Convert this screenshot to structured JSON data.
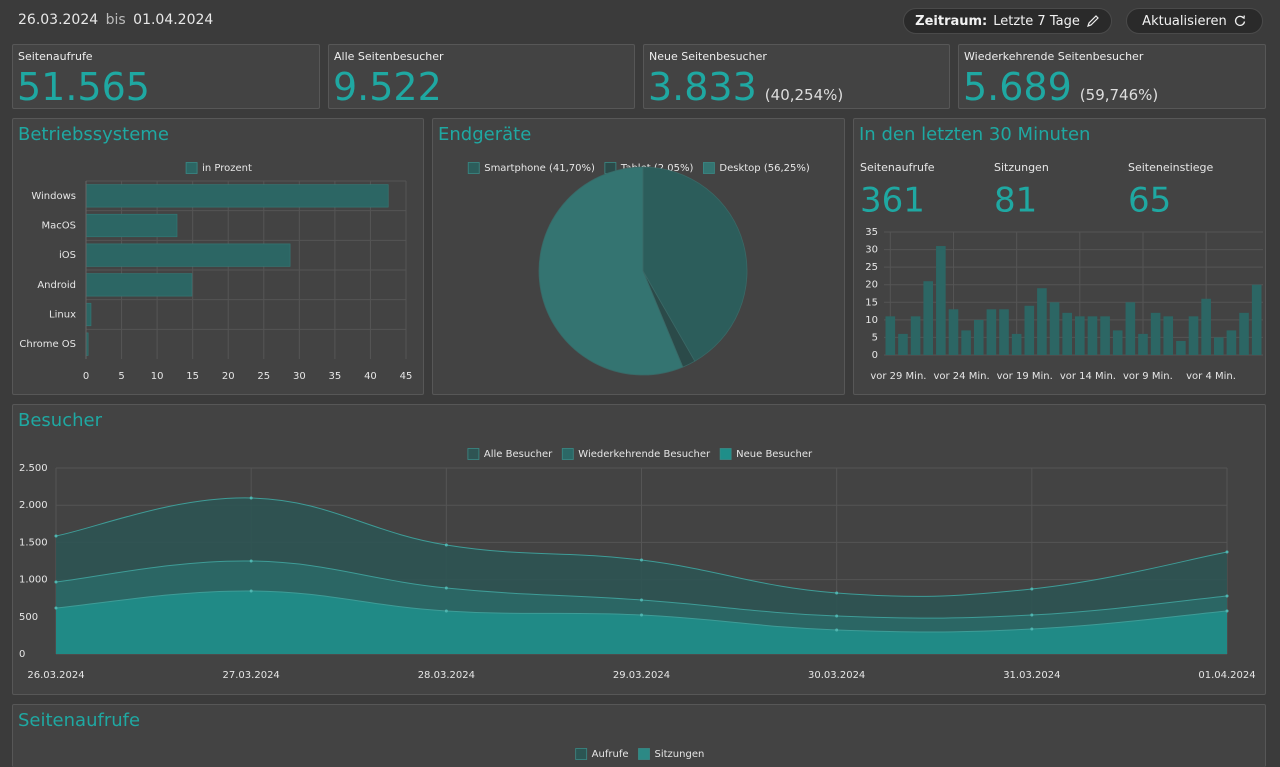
{
  "header": {
    "date_from": "26.03.2024",
    "separator": "bis",
    "date_to": "01.04.2024",
    "period_label": "Zeitraum:",
    "period_value": "Letzte 7 Tage",
    "refresh": "Aktualisieren"
  },
  "kpis": [
    {
      "label": "Seitenaufrufe",
      "value": "51.565"
    },
    {
      "label": "Alle Seitenbesucher",
      "value": "9.522"
    },
    {
      "label": "Neue Seitenbesucher",
      "value": "3.833",
      "share": "(40,254%)"
    },
    {
      "label": "Wiederkehrende Seitenbesucher",
      "value": "5.689",
      "share": "(59,746%)"
    }
  ],
  "chart_data": [
    {
      "type": "hbar",
      "title": "Betriebssysteme",
      "categories": [
        "Windows",
        "MacOS",
        "iOS",
        "Android",
        "Linux",
        "Chrome OS"
      ],
      "series": [
        {
          "name": "in Prozent",
          "color": "#2c6664",
          "values": [
            42.5,
            12.8,
            28.7,
            14.9,
            0.7,
            0.3
          ]
        }
      ],
      "xlim": [
        0,
        45
      ],
      "xticks": [
        0,
        5,
        10,
        15,
        20,
        25,
        30,
        35,
        40,
        45
      ],
      "grid": true
    },
    {
      "type": "pie",
      "title": "Endgeräte",
      "categories": [
        "Smartphone (41,70%)",
        "Tablet (2,05%)",
        "Desktop (56,25%)"
      ],
      "values": [
        41.7,
        2.05,
        56.25
      ],
      "colors": [
        "#2c5d5b",
        "#2b4a49",
        "#347471"
      ]
    },
    {
      "type": "bar",
      "title": "In den letzten 30 Minuten",
      "stats": [
        {
          "label": "Seitenaufrufe",
          "value": 361
        },
        {
          "label": "Sitzungen",
          "value": 81
        },
        {
          "label": "Seiteneinstiege",
          "value": 65
        }
      ],
      "categories": [
        "vor 29 Min.",
        null,
        null,
        null,
        null,
        "vor 24 Min.",
        null,
        null,
        null,
        null,
        "vor 19 Min.",
        null,
        null,
        null,
        null,
        "vor 14 Min.",
        null,
        null,
        null,
        null,
        "vor 9 Min.",
        null,
        null,
        null,
        null,
        "vor 4 Min.",
        null,
        null,
        null,
        null
      ],
      "values": [
        11,
        6,
        11,
        21,
        31,
        13,
        7,
        10,
        13,
        13,
        6,
        14,
        19,
        15,
        12,
        11,
        11,
        11,
        7,
        15,
        6,
        12,
        11,
        4,
        11,
        16,
        5,
        7,
        12,
        20
      ],
      "color": "#2c6664",
      "ylim": [
        0,
        35
      ],
      "yticks": [
        0,
        5,
        10,
        15,
        20,
        25,
        30,
        35
      ],
      "grid": true
    },
    {
      "type": "area",
      "title": "Besucher",
      "x": [
        "26.03.2024",
        "27.03.2024",
        "28.03.2024",
        "29.03.2024",
        "30.03.2024",
        "31.03.2024",
        "01.04.2024"
      ],
      "series": [
        {
          "name": "Alle Besucher",
          "color": "#2e5453",
          "values": [
            1586,
            2097,
            1465,
            1263,
            820,
            874,
            1371
          ]
        },
        {
          "name": "Wiederkehrende Besucher",
          "color": "#2b6866",
          "values": [
            968,
            1250,
            887,
            726,
            511,
            524,
            780
          ]
        },
        {
          "name": "Neue Besucher",
          "color": "#1f8e89",
          "values": [
            618,
            847,
            578,
            524,
            323,
            336,
            578
          ]
        }
      ],
      "ylim": [
        0,
        2500
      ],
      "yticks": [
        0,
        500,
        {
          "value": 1000,
          "label": "1.000"
        },
        {
          "value": 1500,
          "label": "1.500"
        },
        {
          "value": 2000,
          "label": "2.000"
        },
        {
          "value": 2500,
          "label": "2.500"
        }
      ],
      "grid": true
    },
    {
      "type": "line",
      "title": "Seitenaufrufe",
      "series": [
        {
          "name": "Aufrufe",
          "color": "#2b5553"
        },
        {
          "name": "Sitzungen",
          "color": "#2c8985"
        }
      ]
    }
  ]
}
